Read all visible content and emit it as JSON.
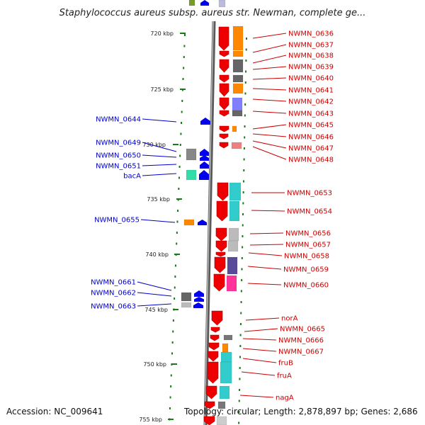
{
  "title": "Staphylococcus aureus subsp. aureus str. Newman, complete ge...",
  "footer": {
    "accession": "Accession: NC_009641",
    "stats": "Topology: circular; Length: 2,878,897 bp; Genes: 2,686"
  },
  "colors": {
    "forward_cds": "#ee0000",
    "reverse_cds": "#0000ee",
    "backbone": "#888888",
    "tick_marks": "#1a7a1a",
    "forward_label": "#cc0000",
    "reverse_label": "#0000cc"
  },
  "scale_labels": [
    "720 kbp",
    "725 kbp",
    "730 kbp",
    "735 kbp",
    "740 kbp",
    "745 kbp",
    "750 kbp",
    "755 kbp"
  ],
  "forward_labels": [
    "NWMN_0636",
    "NWMN_0637",
    "NWMN_0638",
    "NWMN_0639",
    "NWMN_0640",
    "NWMN_0641",
    "NWMN_0642",
    "NWMN_0643",
    "NWMN_0645",
    "NWMN_0646",
    "NWMN_0647",
    "NWMN_0648",
    "NWMN_0653",
    "NWMN_0654",
    "NWMN_0656",
    "NWMN_0657",
    "NWMN_0658",
    "NWMN_0659",
    "NWMN_0660",
    "norA",
    "NWMN_0665",
    "NWMN_0666",
    "NWMN_0667",
    "fruB",
    "fruA",
    "nagA"
  ],
  "reverse_labels": [
    "NWMN_0644",
    "NWMN_0649",
    "NWMN_0650",
    "NWMN_0651",
    "bacA",
    "NWMN_0655",
    "NWMN_0661",
    "NWMN_0662",
    "NWMN_0663"
  ]
}
